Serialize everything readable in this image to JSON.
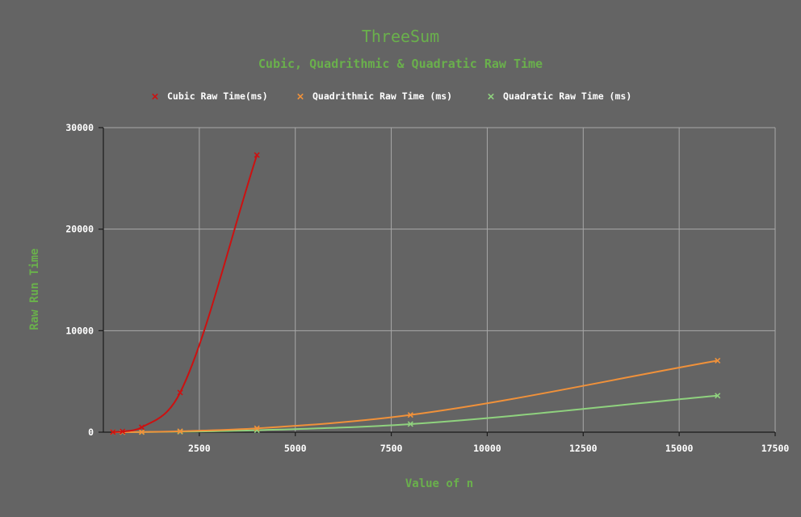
{
  "chart_data": {
    "type": "line",
    "title": "ThreeSum",
    "subtitle": "Cubic, Quadrithmic & Quadratic Raw Time",
    "xlabel": "Value of n",
    "ylabel": "Raw Run Time",
    "xlim": [
      0,
      17500
    ],
    "ylim": [
      0,
      30000
    ],
    "xticks": [
      2500,
      5000,
      7500,
      10000,
      12500,
      15000,
      17500
    ],
    "yticks": [
      0,
      10000,
      20000,
      30000
    ],
    "grid": true,
    "legend_position": "top",
    "series": [
      {
        "name": "Cubic Raw Time(ms)",
        "color": "#cc1111",
        "x": [
          250,
          500,
          1000,
          2000,
          4000
        ],
        "y": [
          8,
          60,
          480,
          3900,
          27300
        ]
      },
      {
        "name": "Quadrithmic Raw Time (ms)",
        "color": "#f0913a",
        "x": [
          250,
          500,
          1000,
          2000,
          4000,
          8000,
          16000
        ],
        "y": [
          1,
          4,
          20,
          90,
          380,
          1700,
          7050
        ]
      },
      {
        "name": "Quadratic Raw Time (ms)",
        "color": "#8fd27e",
        "x": [
          250,
          500,
          1000,
          2000,
          4000,
          8000,
          16000
        ],
        "y": [
          0,
          2,
          10,
          45,
          190,
          800,
          3600
        ]
      }
    ]
  }
}
